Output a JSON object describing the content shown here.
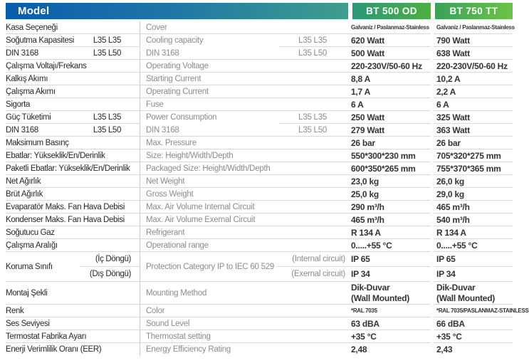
{
  "header": {
    "model_label": "Model",
    "products": [
      "BT 500 OD",
      "BT 750 TT"
    ],
    "colors": {
      "model_bar_start": "#0a5cad",
      "model_bar_end": "#3f9e8c",
      "bt500_start": "#2c9778",
      "bt500_end": "#50ae44",
      "bt750_start": "#3aa158",
      "bt750_end": "#6cc24a",
      "row_border": "#d9d9d9",
      "label_dark": "#26262e",
      "label_gray": "#8b8b8d",
      "value_dark": "#333337"
    }
  },
  "rows": [
    {
      "tr": "Kasa Seçeneği",
      "en": "Cover",
      "v1": "Galvaniz / Paslanmaz-Stainless",
      "v2": "Galvaniz / Paslanmaz-Stainless",
      "small": true
    },
    {
      "tr": "Soğutma Kapasitesi",
      "trSub": "L35 L35",
      "en": "Cooling capacity",
      "enSub": "L35 L35",
      "v1": "620 Watt",
      "v2": "790 Watt",
      "groupStart": true
    },
    {
      "tr": "DIN 3168",
      "trSub": "L35 L50",
      "en": "DIN 3168",
      "enSub": "L35 L50",
      "v1": "500 Watt",
      "v2": "638 Watt"
    },
    {
      "tr": "Çalışma Voltajı/Frekans",
      "en": "Operating Voltage",
      "v1": "220-230V/50-60 Hz",
      "v2": "220-230V/50-60 Hz"
    },
    {
      "tr": "Kalkış Akımı",
      "en": "Starting Current",
      "v1": "8,8 A",
      "v2": "10,2 A"
    },
    {
      "tr": "Çalışma Akımı",
      "en": "Operating Current",
      "v1": "1,7 A",
      "v2": "2,2 A"
    },
    {
      "tr": "Sigorta",
      "en": "Fuse",
      "v1": "6 A",
      "v2": "6 A"
    },
    {
      "tr": "Güç Tüketimi",
      "trSub": "L35 L35",
      "en": "Power Consumption",
      "enSub": "L35 L35",
      "v1": "250 Watt",
      "v2": "325 Watt",
      "groupStart": true
    },
    {
      "tr": "DIN 3168",
      "trSub": "L35 L50",
      "en": "DIN 3168",
      "enSub": "L35 L50",
      "v1": "279 Watt",
      "v2": "363 Watt"
    },
    {
      "tr": "Maksimum Basınç",
      "en": "Max. Pressure",
      "v1": "26 bar",
      "v2": "26 bar"
    },
    {
      "tr": "Ebatlar: Yükseklik/En/Derinlik",
      "en": "Size: Height/Width/Depth",
      "v1": "550*300*230 mm",
      "v2": "705*320*275 mm"
    },
    {
      "tr": "Paketli Ebatlar: Yükseklik/En/Derinlik",
      "en": "Packaged Size: Height/Width/Depth",
      "v1": "600*350*265 mm",
      "v2": "755*370*365 mm"
    },
    {
      "tr": "Net Ağırlık",
      "en": "Net Weight",
      "v1": "23,0 kg",
      "v2": "26,0 kg"
    },
    {
      "tr": "Brüt Ağırlık",
      "en": "Gross Weight",
      "v1": "25,0 kg",
      "v2": "29,0 kg"
    },
    {
      "tr": "Evaparatör Maks. Fan Hava Debisi",
      "en": "Max. Air Volume Internal Circuit",
      "v1": "290 m³/h",
      "v2": "465 m³/h"
    },
    {
      "tr": "Kondenser Maks. Fan Hava Debisi",
      "en": "Max. Air Volume Exernal Circuit",
      "v1": "465 m³/h",
      "v2": "540 m³/h"
    },
    {
      "tr": "Soğutucu Gaz",
      "en": "Refrigerant",
      "v1": "R 134 A",
      "v2": "R 134 A"
    },
    {
      "tr": "Çalışma Aralığı",
      "en": "Operational range",
      "v1": "0.....+55 °C",
      "v2": "0.....+55 °C"
    },
    {
      "type": "double",
      "tr": "Koruma Sınıfı",
      "trSubs": [
        "(İç Döngü)",
        "(Dış Döngü)"
      ],
      "en": "Protection Category IP to IEC 60 529",
      "enSubs": [
        "(Internal circuit)",
        "(Exernal circuit)"
      ],
      "v1s": [
        "IP 65",
        "IP 34"
      ],
      "v2s": [
        "IP 65",
        "IP 34"
      ]
    },
    {
      "tr": "Montaj Şekli",
      "en": "Mounting Method",
      "v1Lines": [
        "Dik-Duvar",
        "(Wall Mounted)"
      ],
      "v2Lines": [
        "Dik-Duvar",
        "(Wall Mounted)"
      ],
      "tall": true
    },
    {
      "tr": "Renk",
      "en": "Color",
      "v1": "*RAL 7035",
      "v2": "*RAL 7035/PASLANMAZ-STAINLESS",
      "small": true
    },
    {
      "tr": "Ses Seviyesi",
      "en": "Sound Level",
      "v1": "63 dBA",
      "v2": "66 dBA"
    },
    {
      "tr": "Termostat Fabrika Ayarı",
      "en": "Thermostat setting",
      "v1": "+35 °C",
      "v2": "+35 °C"
    },
    {
      "tr": "Enerji Verimlilik Oranı (EER)",
      "en": "Energy Efficiency Rating",
      "v1": "2,48",
      "v2": "2,43",
      "last": true
    }
  ]
}
